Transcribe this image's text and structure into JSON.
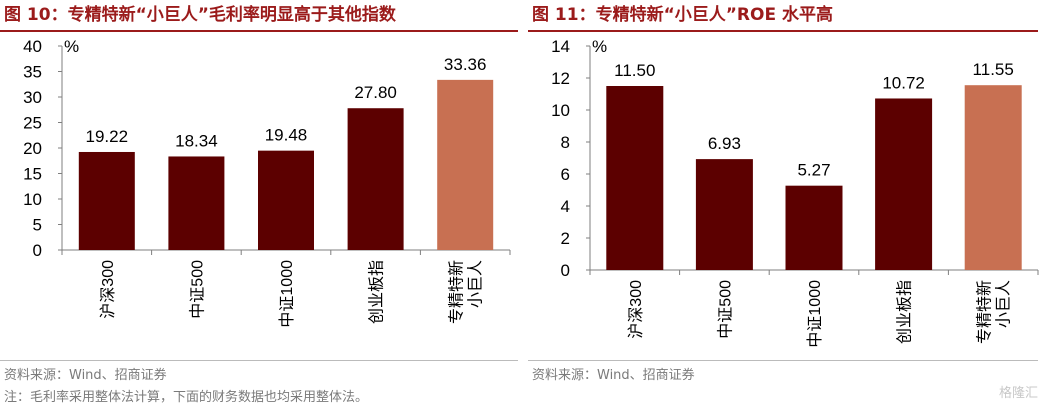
{
  "panels": [
    {
      "figure_title": "图 10：专精特新“小巨人”毛利率明显高于其他指数",
      "source": "资料来源：Wind、招商证券",
      "footnote": "注：毛利率采用整体法计算，下面的财务数据也均采用整体法。"
    },
    {
      "figure_title": "图 11：专精特新“小巨人”ROE 水平高",
      "source": "资料来源：Wind、招商证券",
      "watermark": "格隆汇"
    }
  ],
  "colors": {
    "bar": "#5c0000",
    "highlight": "#c87052",
    "title": "#9b1b1b",
    "axis": "#7f7f7f"
  },
  "chart_data": [
    {
      "type": "bar",
      "title": "图 10：专精特新“小巨人”毛利率明显高于其他指数",
      "categories": [
        "沪深300",
        "中证500",
        "中证1000",
        "创业板指",
        "专精特新\n小巨人"
      ],
      "values": [
        19.22,
        18.34,
        19.48,
        27.8,
        33.36
      ],
      "value_labels": [
        "19.22",
        "18.34",
        "19.48",
        "27.80",
        "33.36"
      ],
      "highlight_index": 4,
      "unit": "%",
      "ylim": [
        0,
        40
      ],
      "yticks": [
        "0",
        "5",
        "10",
        "15",
        "20",
        "25",
        "30",
        "35",
        "40"
      ],
      "grid": false,
      "legend": "none"
    },
    {
      "type": "bar",
      "title": "图 11：专精特新“小巨人”ROE 水平高",
      "categories": [
        "沪深300",
        "中证500",
        "中证1000",
        "创业板指",
        "专精特新\n小巨人"
      ],
      "values": [
        11.5,
        6.93,
        5.27,
        10.72,
        11.55
      ],
      "value_labels": [
        "11.50",
        "6.93",
        "5.27",
        "10.72",
        "11.55"
      ],
      "highlight_index": 4,
      "unit": "%",
      "ylim": [
        0,
        14
      ],
      "yticks": [
        "0",
        "2",
        "4",
        "6",
        "8",
        "10",
        "12",
        "14"
      ],
      "grid": false,
      "legend": "none"
    }
  ]
}
